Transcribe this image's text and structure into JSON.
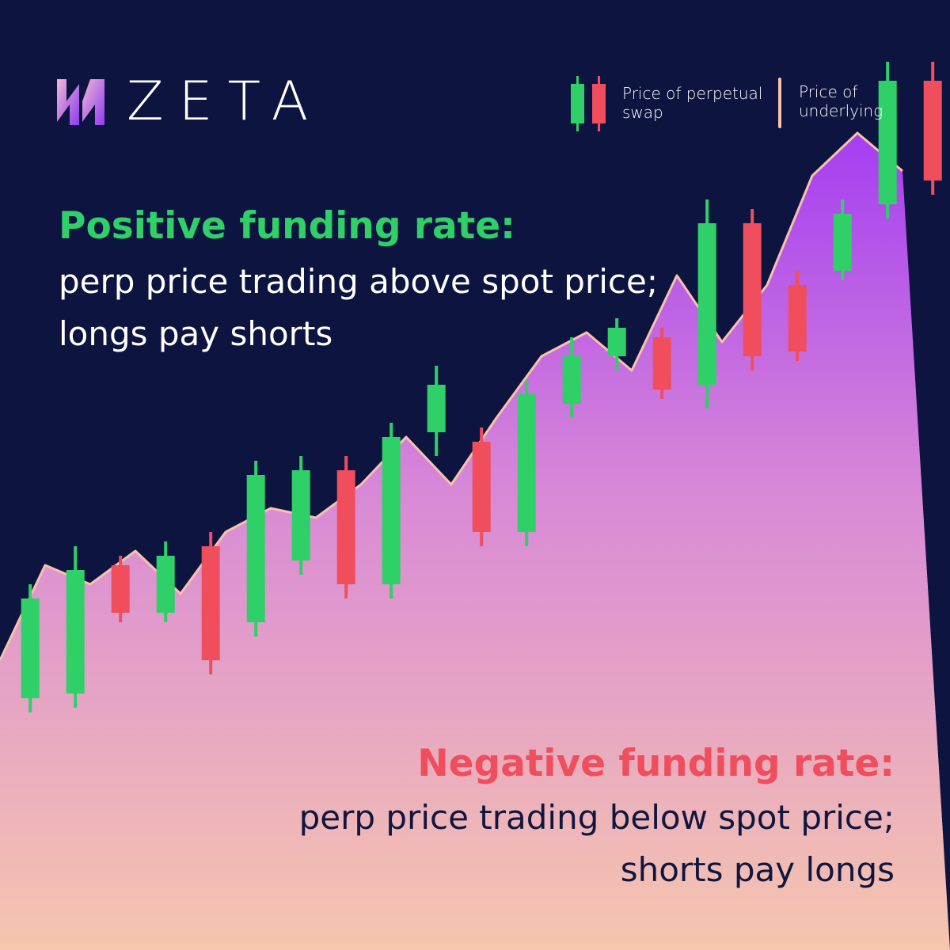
{
  "brand": {
    "name": "ZETA",
    "logo_icon": "zeta-lightning-logo"
  },
  "legend": {
    "perp": {
      "line1": "Price of perpetual",
      "line2": "swap"
    },
    "spot": {
      "line1": "Price of",
      "line2": "underlying"
    }
  },
  "positive": {
    "title": "Positive funding rate:",
    "line1": "perp price trading above spot price;",
    "line2": "longs pay shorts"
  },
  "negative": {
    "title": "Negative funding rate:",
    "line1": "perp price trading below spot price;",
    "line2": "shorts pay longs"
  },
  "colors": {
    "background": "#0d1440",
    "bullish": "#2fd068",
    "bearish": "#f04e5d",
    "spot_line": "#f6c3ab",
    "area_top": "#a53ef2",
    "area_bottom": "#f6c6ad"
  },
  "chart_data": {
    "type": "candlestick",
    "ylim": [
      0,
      1000
    ],
    "spot_line": [
      {
        "x": 0,
        "y": 305
      },
      {
        "x": 1,
        "y": 405
      },
      {
        "x": 2,
        "y": 385
      },
      {
        "x": 3,
        "y": 420
      },
      {
        "x": 4,
        "y": 375
      },
      {
        "x": 5,
        "y": 440
      },
      {
        "x": 6,
        "y": 465
      },
      {
        "x": 7,
        "y": 455
      },
      {
        "x": 8,
        "y": 490
      },
      {
        "x": 9,
        "y": 540
      },
      {
        "x": 10,
        "y": 490
      },
      {
        "x": 11,
        "y": 560
      },
      {
        "x": 12,
        "y": 625
      },
      {
        "x": 13,
        "y": 650
      },
      {
        "x": 14,
        "y": 610
      },
      {
        "x": 15,
        "y": 710
      },
      {
        "x": 16,
        "y": 640
      },
      {
        "x": 17,
        "y": 700
      },
      {
        "x": 18,
        "y": 815
      },
      {
        "x": 19,
        "y": 860
      },
      {
        "x": 20,
        "y": 820
      }
    ],
    "candles": [
      {
        "x": 0.67,
        "open": 265,
        "close": 370,
        "high": 385,
        "low": 250
      },
      {
        "x": 1.67,
        "open": 270,
        "close": 400,
        "high": 425,
        "low": 255
      },
      {
        "x": 2.67,
        "open": 405,
        "close": 355,
        "high": 415,
        "low": 345
      },
      {
        "x": 3.67,
        "open": 355,
        "close": 415,
        "high": 430,
        "low": 345
      },
      {
        "x": 4.67,
        "open": 425,
        "close": 305,
        "high": 440,
        "low": 290
      },
      {
        "x": 5.67,
        "open": 345,
        "close": 500,
        "high": 515,
        "low": 330
      },
      {
        "x": 6.67,
        "open": 410,
        "close": 505,
        "high": 520,
        "low": 395
      },
      {
        "x": 7.67,
        "open": 505,
        "close": 385,
        "high": 520,
        "low": 370
      },
      {
        "x": 8.67,
        "open": 385,
        "close": 540,
        "high": 555,
        "low": 370
      },
      {
        "x": 9.67,
        "open": 545,
        "close": 595,
        "high": 615,
        "low": 520
      },
      {
        "x": 10.67,
        "open": 535,
        "close": 440,
        "high": 550,
        "low": 425
      },
      {
        "x": 11.67,
        "open": 440,
        "close": 585,
        "high": 600,
        "low": 425
      },
      {
        "x": 12.67,
        "open": 575,
        "close": 625,
        "high": 645,
        "low": 560
      },
      {
        "x": 13.67,
        "open": 625,
        "close": 655,
        "high": 665,
        "low": 610
      },
      {
        "x": 14.67,
        "open": 645,
        "close": 590,
        "high": 655,
        "low": 580
      },
      {
        "x": 15.67,
        "open": 595,
        "close": 765,
        "high": 790,
        "low": 570
      },
      {
        "x": 16.67,
        "open": 765,
        "close": 625,
        "high": 780,
        "low": 610
      },
      {
        "x": 17.67,
        "open": 700,
        "close": 630,
        "high": 715,
        "low": 620
      },
      {
        "x": 18.67,
        "open": 715,
        "close": 775,
        "high": 790,
        "low": 705
      },
      {
        "x": 19.67,
        "open": 785,
        "close": 915,
        "high": 935,
        "low": 770
      },
      {
        "x": 20.67,
        "open": 915,
        "close": 810,
        "high": 935,
        "low": 795
      }
    ]
  }
}
